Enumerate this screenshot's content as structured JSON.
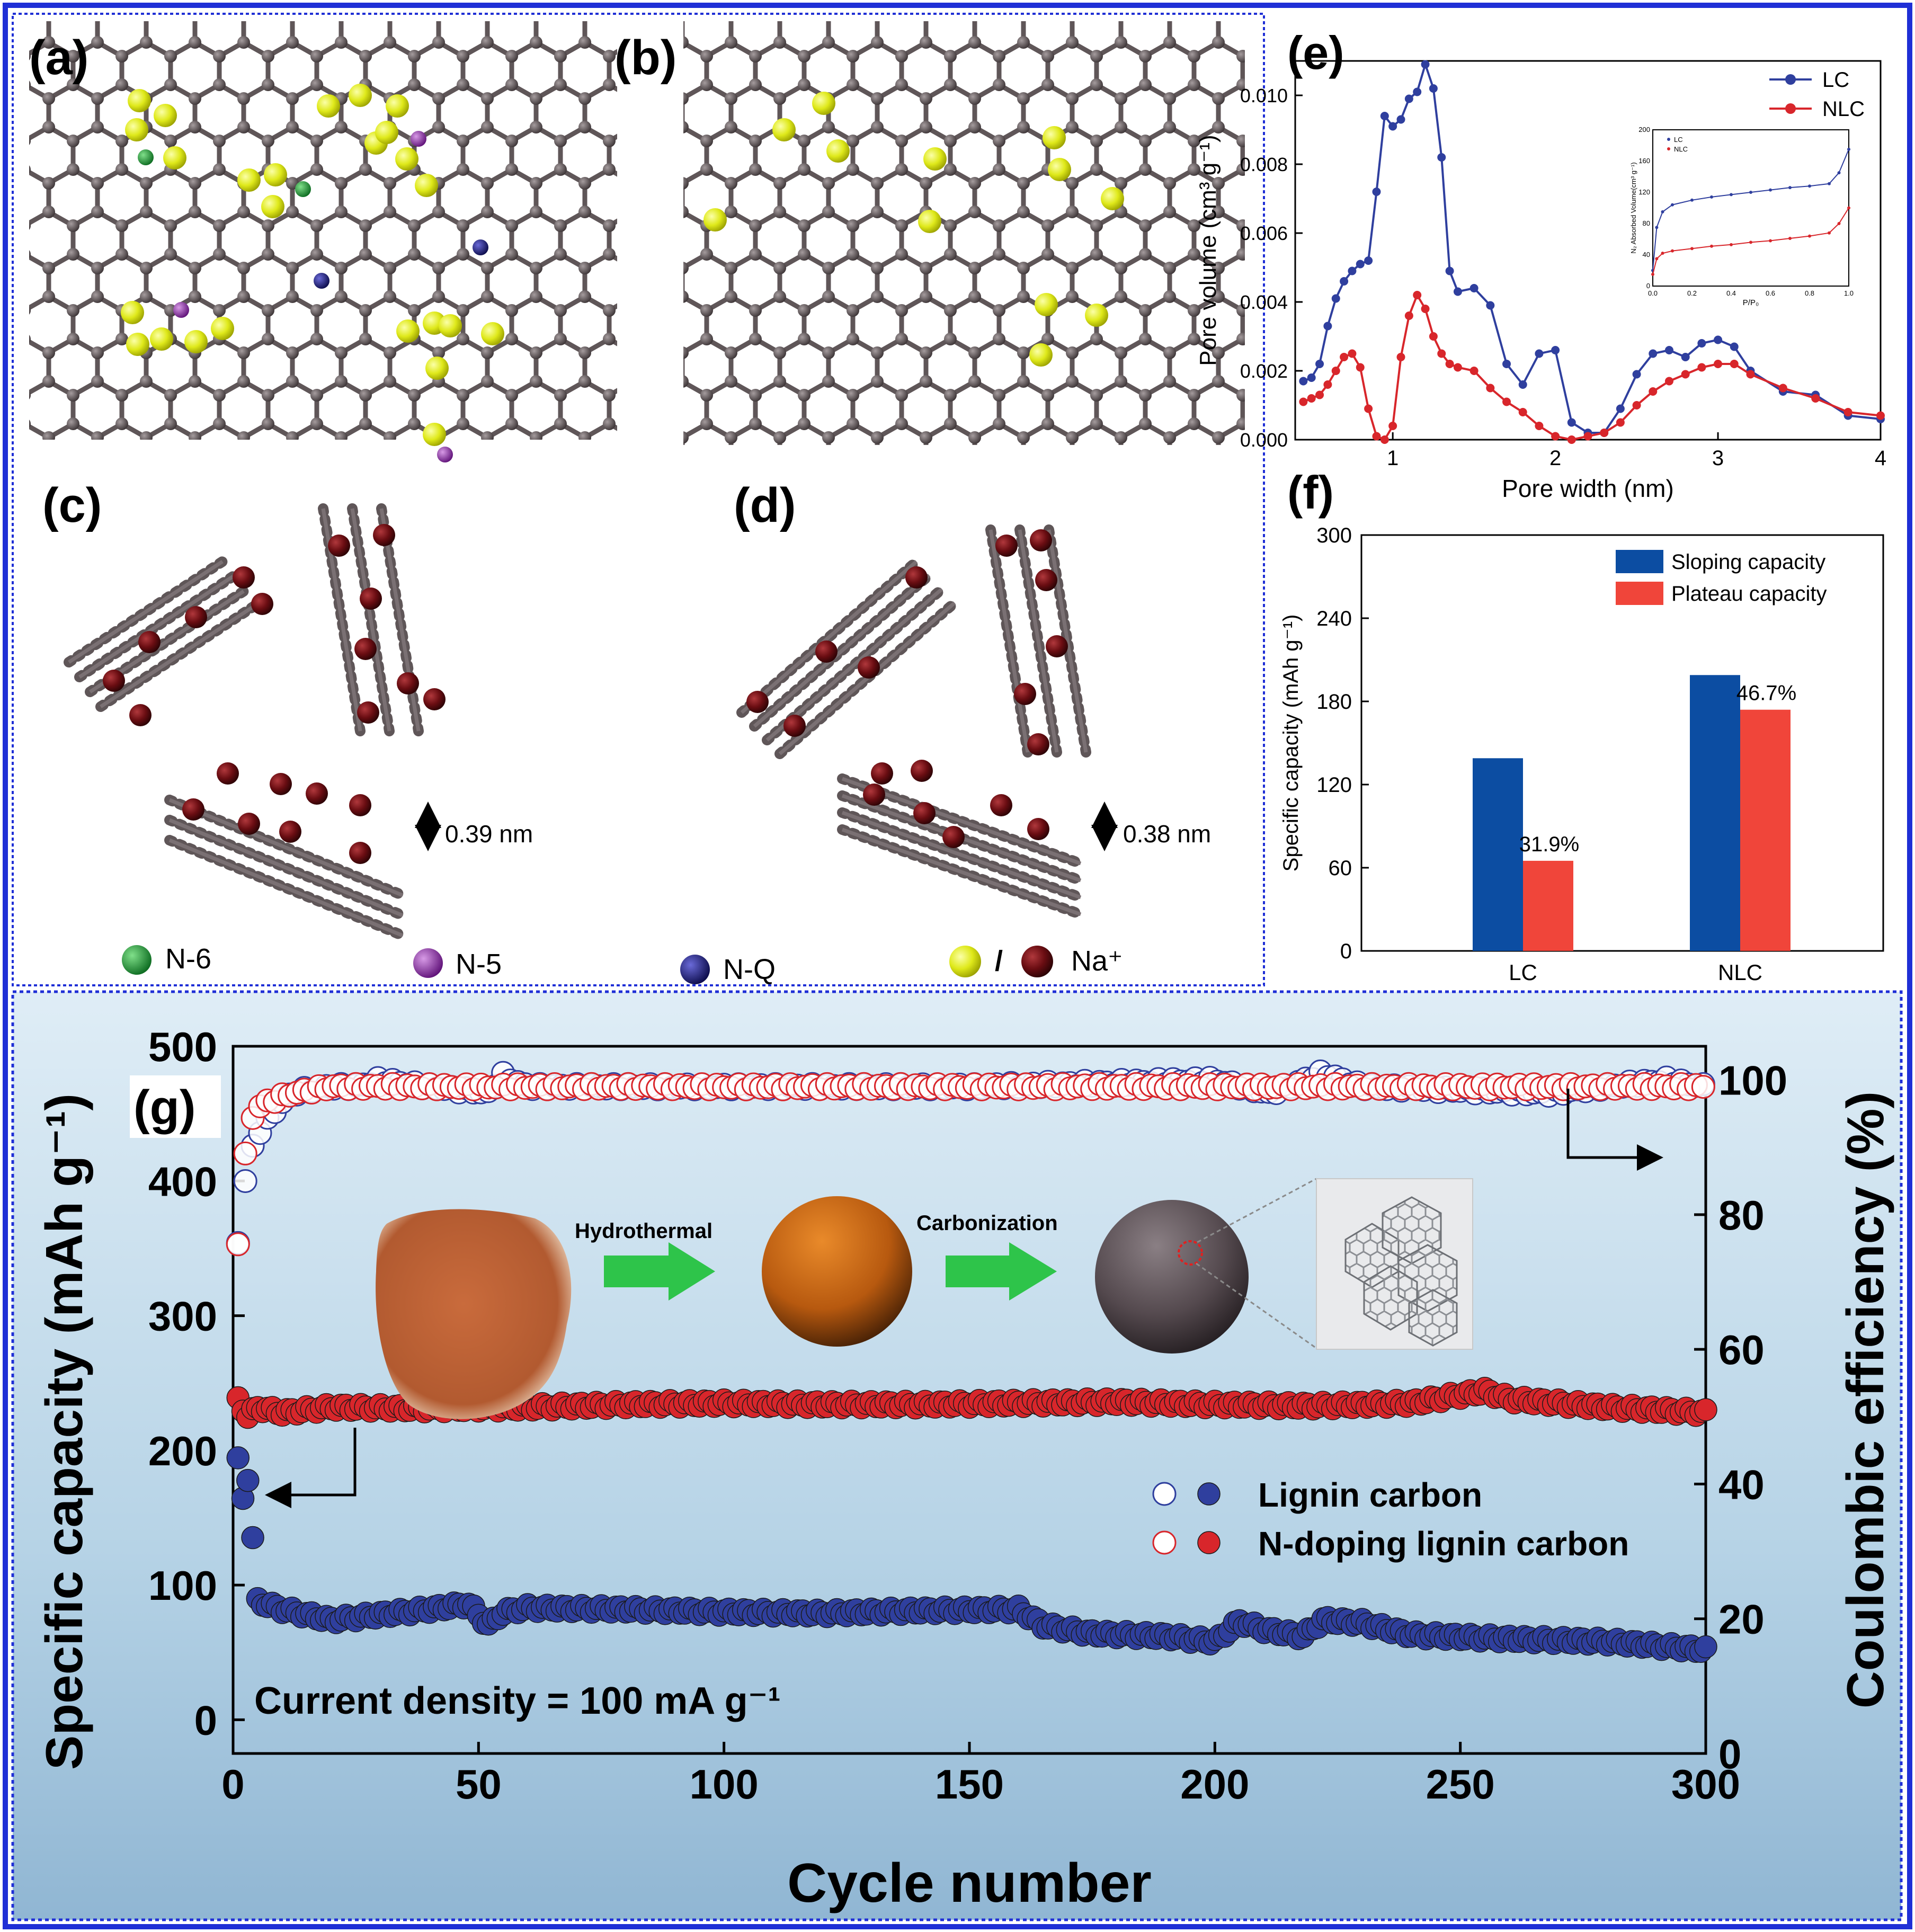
{
  "panel_labels": {
    "a": "(a)",
    "b": "(b)",
    "c": "(c)",
    "d": "(d)",
    "e": "(e)",
    "f": "(f)",
    "g": "(g)"
  },
  "structures": {
    "spacing_c": "0.39 nm",
    "spacing_d": "0.38 nm",
    "legend": {
      "n6": "N-6",
      "n5": "N-5",
      "nq": "N-Q",
      "slash": "/",
      "na": "Na⁺"
    }
  },
  "colors": {
    "frame_blue": "#1f2fd6",
    "carbon": "#5f5658",
    "na_yellow": "#e4ee1a",
    "na_red": "#6a0d12",
    "n6": "#1f9e3a",
    "n5": "#8e2ba8",
    "nq": "#1a1a7a",
    "series_blue": "#2f3f9e",
    "series_red": "#d8262b",
    "bar_blue": "#0c4da2",
    "bar_red": "#f0453a",
    "arrow_green": "#2ec44a"
  },
  "chart_data": [
    {
      "id": "e",
      "type": "line",
      "xlabel": "Pore width (nm)",
      "ylabel": "Pore volume (cm³ g⁻¹)",
      "xlim": [
        0.4,
        4.0
      ],
      "ylim": [
        0,
        0.011
      ],
      "xticks": [
        "1",
        "2",
        "3",
        "4"
      ],
      "yticks": [
        "0.000",
        "0.002",
        "0.004",
        "0.006",
        "0.008",
        "0.010"
      ],
      "series": [
        {
          "name": "LC",
          "color": "#2f3f9e",
          "x": [
            0.45,
            0.5,
            0.55,
            0.6,
            0.65,
            0.7,
            0.75,
            0.8,
            0.85,
            0.9,
            0.95,
            1.0,
            1.05,
            1.1,
            1.15,
            1.2,
            1.25,
            1.3,
            1.35,
            1.4,
            1.5,
            1.6,
            1.7,
            1.8,
            1.9,
            2.0,
            2.1,
            2.2,
            2.3,
            2.4,
            2.5,
            2.6,
            2.7,
            2.8,
            2.9,
            3.0,
            3.1,
            3.2,
            3.4,
            3.6,
            3.8,
            4.0
          ],
          "y": [
            0.0017,
            0.0018,
            0.0022,
            0.0033,
            0.0041,
            0.0046,
            0.0049,
            0.0051,
            0.0052,
            0.0072,
            0.0094,
            0.0091,
            0.0093,
            0.0099,
            0.0101,
            0.0109,
            0.0102,
            0.0082,
            0.0049,
            0.0043,
            0.0044,
            0.0039,
            0.0022,
            0.0016,
            0.0025,
            0.0026,
            0.0005,
            0.0002,
            0.0002,
            0.0009,
            0.0019,
            0.0025,
            0.0026,
            0.0024,
            0.0028,
            0.0029,
            0.0027,
            0.002,
            0.0014,
            0.0013,
            0.0007,
            0.0006
          ]
        },
        {
          "name": "NLC",
          "color": "#d8262b",
          "x": [
            0.45,
            0.5,
            0.55,
            0.6,
            0.65,
            0.7,
            0.75,
            0.8,
            0.85,
            0.9,
            0.95,
            1.0,
            1.05,
            1.1,
            1.15,
            1.2,
            1.25,
            1.3,
            1.35,
            1.4,
            1.5,
            1.6,
            1.7,
            1.8,
            1.9,
            2.0,
            2.1,
            2.2,
            2.3,
            2.4,
            2.5,
            2.6,
            2.7,
            2.8,
            2.9,
            3.0,
            3.1,
            3.2,
            3.4,
            3.6,
            3.8,
            4.0
          ],
          "y": [
            0.0011,
            0.0012,
            0.0013,
            0.0016,
            0.002,
            0.0024,
            0.0025,
            0.0021,
            0.0009,
            0.0001,
            0.0,
            0.0004,
            0.0024,
            0.0036,
            0.0042,
            0.0038,
            0.003,
            0.0025,
            0.0022,
            0.0021,
            0.002,
            0.0015,
            0.0011,
            0.0008,
            0.0004,
            0.0001,
            0.0,
            0.0001,
            0.0002,
            0.0005,
            0.001,
            0.0014,
            0.0017,
            0.0019,
            0.0021,
            0.0022,
            0.0022,
            0.0019,
            0.0015,
            0.0012,
            0.0008,
            0.0007
          ]
        }
      ],
      "inset": {
        "xlabel": "P/P₀",
        "ylabel": "N₂ Absorbed Volume(cm³ g⁻¹)",
        "xlim": [
          0,
          1.0
        ],
        "ylim": [
          0,
          200
        ],
        "xticks": [
          "0.0",
          "0.2",
          "0.4",
          "0.6",
          "0.8",
          "1.0"
        ],
        "yticks": [
          "0",
          "40",
          "80",
          "120",
          "160",
          "200"
        ],
        "series": [
          {
            "name": "LC",
            "color": "#2f3f9e",
            "x": [
              0.0,
              0.02,
              0.05,
              0.1,
              0.2,
              0.3,
              0.4,
              0.5,
              0.6,
              0.7,
              0.8,
              0.9,
              0.95,
              1.0
            ],
            "y": [
              20,
              75,
              95,
              104,
              110,
              114,
              117,
              120,
              123,
              126,
              128,
              131,
              145,
              175
            ]
          },
          {
            "name": "NLC",
            "color": "#d8262b",
            "x": [
              0.0,
              0.02,
              0.05,
              0.1,
              0.2,
              0.3,
              0.4,
              0.5,
              0.6,
              0.7,
              0.8,
              0.9,
              0.95,
              1.0
            ],
            "y": [
              15,
              35,
              42,
              45,
              48,
              51,
              53,
              56,
              58,
              61,
              64,
              68,
              80,
              100
            ]
          }
        ]
      }
    },
    {
      "id": "f",
      "type": "bar",
      "categories": [
        "LC",
        "NLC"
      ],
      "ylabel": "Specific capacity (mAh g⁻¹)",
      "ylim": [
        0,
        300
      ],
      "yticks": [
        "0",
        "60",
        "120",
        "180",
        "240",
        "300"
      ],
      "series": [
        {
          "name": "Sloping capacity",
          "color": "#0c4da2",
          "values": [
            139,
            199
          ]
        },
        {
          "name": "Plateau capacity",
          "color": "#f0453a",
          "values": [
            65,
            174
          ]
        }
      ],
      "annotations": [
        "31.9%",
        "46.7%"
      ]
    },
    {
      "id": "g",
      "type": "scatter",
      "xlabel": "Cycle number",
      "ylabel": "Specific capacity (mAh g⁻¹)",
      "y2label": "Coulombic efficiency (%)",
      "xlim": [
        0,
        300
      ],
      "ylim": [
        -25,
        500
      ],
      "y2lim": [
        0,
        105
      ],
      "xticks": [
        "0",
        "50",
        "100",
        "150",
        "200",
        "250",
        "300"
      ],
      "yticks": [
        "0",
        "100",
        "200",
        "300",
        "400",
        "500"
      ],
      "y2ticks": [
        "0",
        "20",
        "40",
        "60",
        "80",
        "100"
      ],
      "annotation": "Current density = 100 mA g⁻¹",
      "process_labels": [
        "Hydrothermal",
        "Carbonization"
      ],
      "legend": [
        {
          "label": "Lignin carbon",
          "color": "#2f3f9e"
        },
        {
          "label": "N-doping lignin carbon",
          "color": "#d8262b"
        }
      ],
      "series": [
        {
          "name": "Lignin carbon capacity",
          "axis": "left",
          "color": "#2f3f9e",
          "x": [
            1,
            2,
            3,
            5,
            10,
            20,
            30,
            40,
            48,
            52,
            55,
            60,
            80,
            100,
            120,
            140,
            160,
            165,
            175,
            190,
            200,
            205,
            210,
            218,
            222,
            230,
            240,
            260,
            280,
            300
          ],
          "y": [
            192,
            165,
            180,
            88,
            82,
            74,
            78,
            82,
            86,
            70,
            80,
            83,
            82,
            80,
            79,
            81,
            82,
            70,
            64,
            62,
            58,
            73,
            67,
            62,
            74,
            72,
            63,
            60,
            58,
            52
          ]
        },
        {
          "name": "N-doping lignin carbon capacity",
          "axis": "left",
          "color": "#d8262b",
          "x": [
            1,
            3,
            5,
            10,
            20,
            40,
            60,
            80,
            100,
            120,
            140,
            160,
            180,
            200,
            220,
            240,
            255,
            260,
            280,
            300
          ],
          "y": [
            238,
            225,
            232,
            228,
            232,
            231,
            232,
            234,
            235,
            234,
            234,
            235,
            236,
            234,
            233,
            235,
            244,
            238,
            232,
            228
          ]
        },
        {
          "name": "Lignin carbon CE",
          "axis": "right",
          "color": "#2f3f9e",
          "x": [
            1,
            3,
            5,
            7,
            9,
            12,
            18,
            25,
            30,
            40,
            53,
            54,
            60,
            100,
            150,
            200,
            211,
            222,
            230,
            268,
            292,
            300
          ],
          "y": [
            76,
            88,
            92,
            94,
            96,
            98,
            99,
            99,
            100,
            99,
            98,
            101,
            99,
            99,
            99,
            100,
            98,
            101,
            99,
            98,
            100,
            99
          ]
        },
        {
          "name": "N-doping lignin carbon CE",
          "axis": "right",
          "color": "#d8262b",
          "x": [
            1,
            3,
            5,
            8,
            12,
            20,
            40,
            80,
            120,
            160,
            200,
            240,
            280,
            300
          ],
          "y": [
            76,
            93,
            96,
            97,
            98,
            99,
            99,
            99,
            99,
            99,
            99,
            99,
            99,
            99
          ]
        }
      ]
    }
  ]
}
